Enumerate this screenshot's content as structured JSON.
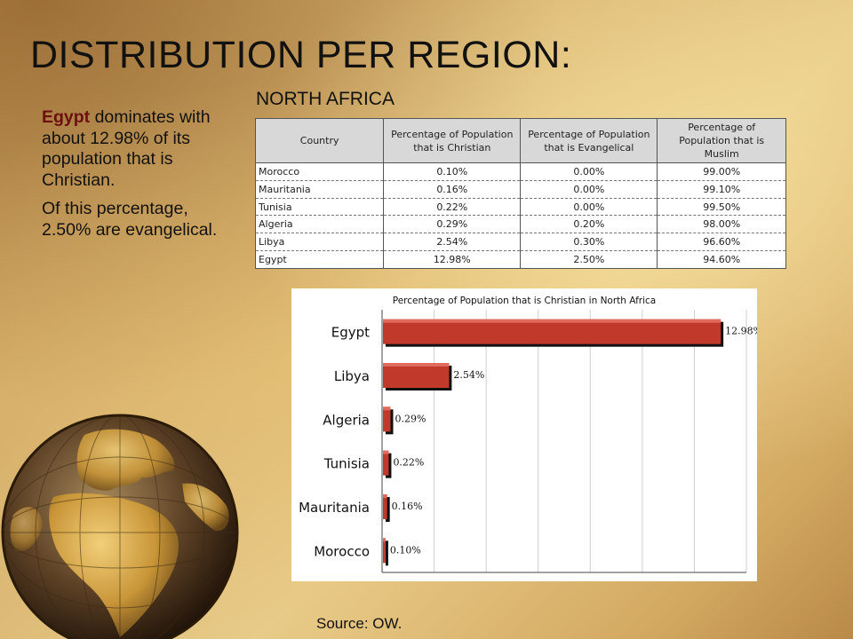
{
  "slide": {
    "title": "DISTRIBUTION PER REGION:",
    "subtitle": "NORTH AFRICA",
    "bullet1_bold": "Egypt",
    "bullet1_rest": " dominates with about 12.98% of its population that is Christian.",
    "bullet2": "Of this percentage, 2.50% are evangelical.",
    "source": "Source: OW."
  },
  "table": {
    "headers": [
      "Country",
      "Percentage of Population that is Christian",
      "Percentage of Population that is Evangelical",
      "Percentage of Population that is Muslim"
    ],
    "rows": [
      [
        "Morocco",
        "0.10%",
        "0.00%",
        "99.00%"
      ],
      [
        "Mauritania",
        "0.16%",
        "0.00%",
        "99.10%"
      ],
      [
        "Tunisia",
        "0.22%",
        "0.00%",
        "99.50%"
      ],
      [
        "Algeria",
        "0.29%",
        "0.20%",
        "98.00%"
      ],
      [
        "Libya",
        "2.54%",
        "0.30%",
        "96.60%"
      ],
      [
        "Egypt",
        "12.98%",
        "2.50%",
        "94.60%"
      ]
    ]
  },
  "chart_data": {
    "type": "bar",
    "orientation": "horizontal",
    "title": "Percentage of Population that is Christian in North Africa",
    "categories": [
      "Egypt",
      "Libya",
      "Algeria",
      "Tunisia",
      "Mauritania",
      "Morocco"
    ],
    "values": [
      12.98,
      2.54,
      0.29,
      0.22,
      0.16,
      0.1
    ],
    "data_labels": [
      "12.98%",
      "2.54%",
      "0.29%",
      "0.22%",
      "0.16%",
      "0.10%"
    ],
    "bar_color": "#c0392b",
    "grid": true,
    "xlabel": "",
    "ylabel": ""
  }
}
